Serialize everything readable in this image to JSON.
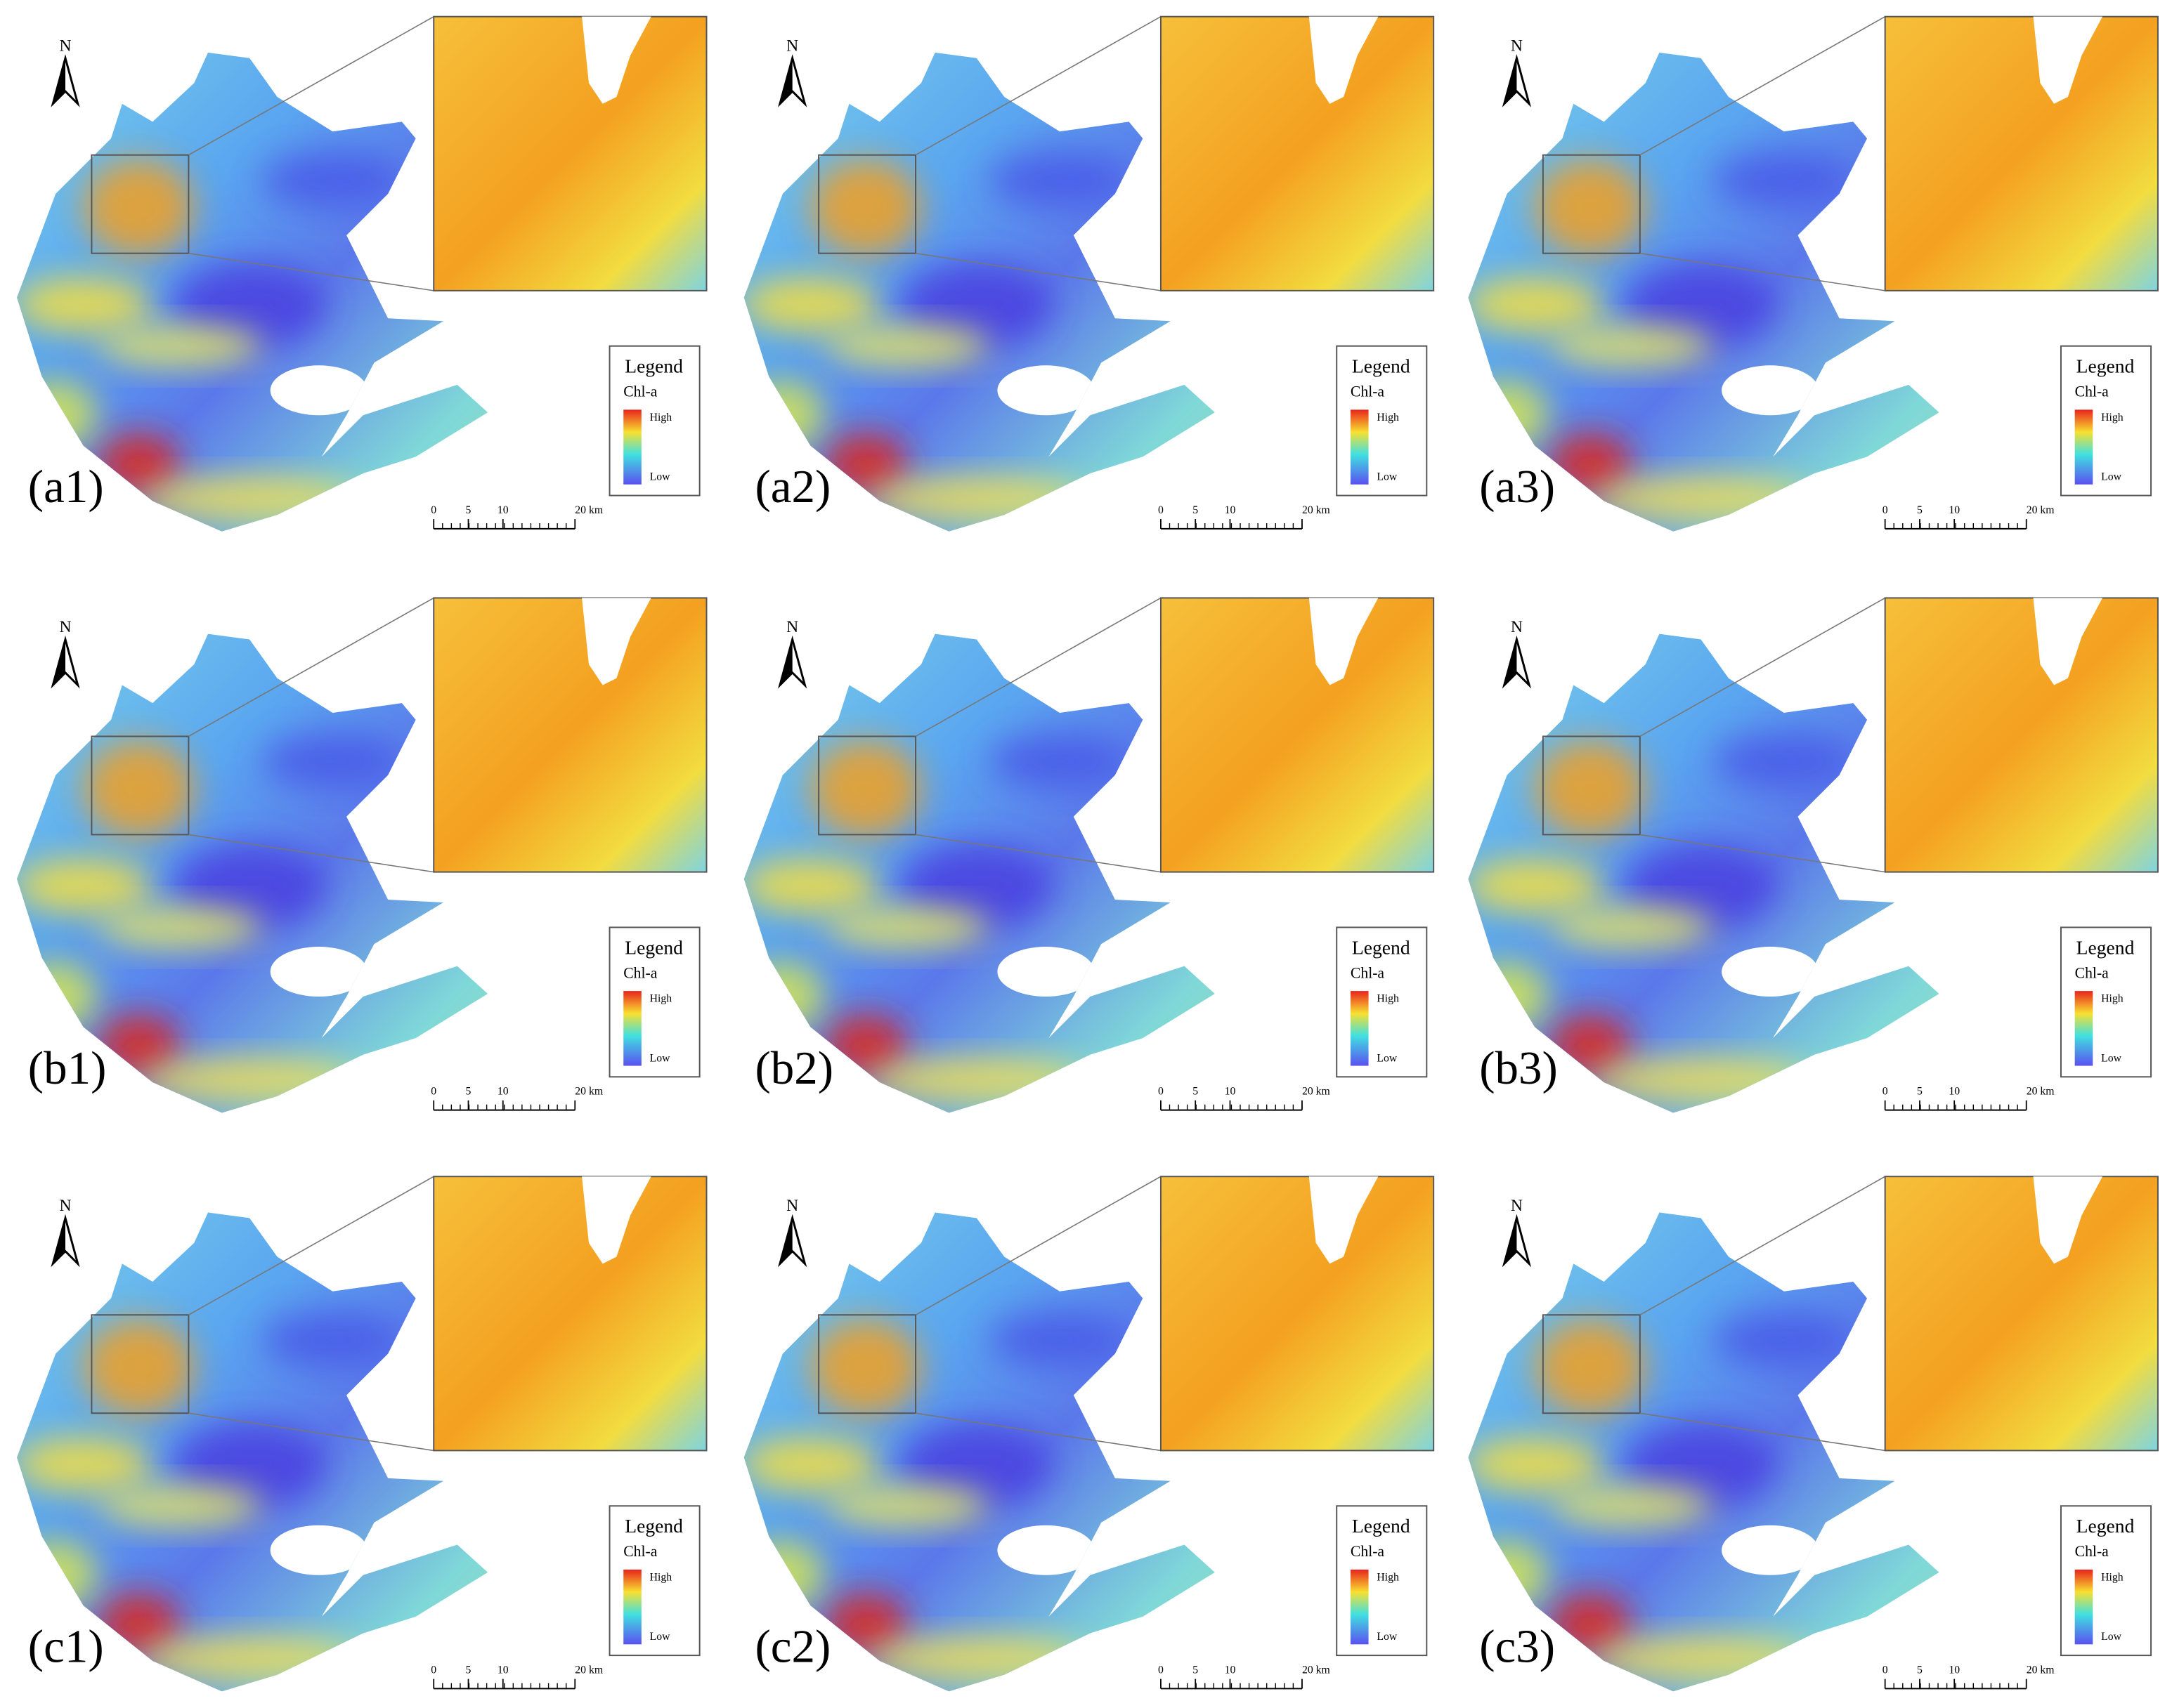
{
  "panels": [
    {
      "label": "(a1)",
      "north": "N",
      "legend": {
        "title": "Legend",
        "variable": "Chl-a",
        "high": "High",
        "low": "Low"
      },
      "scale_bar": [
        "0",
        "5",
        "10",
        "20 km"
      ]
    },
    {
      "label": "(a2)",
      "north": "N",
      "legend": {
        "title": "Legend",
        "variable": "Chl-a",
        "high": "High",
        "low": "Low"
      },
      "scale_bar": [
        "0",
        "5",
        "10",
        "20 km"
      ]
    },
    {
      "label": "(a3)",
      "north": "N",
      "legend": {
        "title": "Legend",
        "variable": "Chl-a",
        "high": "High",
        "low": "Low"
      },
      "scale_bar": [
        "0",
        "5",
        "10",
        "20 km"
      ]
    },
    {
      "label": "(b1)",
      "north": "N",
      "legend": {
        "title": "Legend",
        "variable": "Chl-a",
        "high": "High",
        "low": "Low"
      },
      "scale_bar": [
        "0",
        "5",
        "10",
        "20 km"
      ]
    },
    {
      "label": "(b2)",
      "north": "N",
      "legend": {
        "title": "Legend",
        "variable": "Chl-a",
        "high": "High",
        "low": "Low"
      },
      "scale_bar": [
        "0",
        "5",
        "10",
        "20 km"
      ]
    },
    {
      "label": "(b3)",
      "north": "N",
      "legend": {
        "title": "Legend",
        "variable": "Chl-a",
        "high": "High",
        "low": "Low"
      },
      "scale_bar": [
        "0",
        "5",
        "10",
        "20 km"
      ]
    },
    {
      "label": "(c1)",
      "north": "N",
      "legend": {
        "title": "Legend",
        "variable": "Chl-a",
        "high": "High",
        "low": "Low"
      },
      "scale_bar": [
        "0",
        "5",
        "10",
        "20 km"
      ]
    },
    {
      "label": "(c2)",
      "north": "N",
      "legend": {
        "title": "Legend",
        "variable": "Chl-a",
        "high": "High",
        "low": "Low"
      },
      "scale_bar": [
        "0",
        "5",
        "10",
        "20 km"
      ]
    },
    {
      "label": "(c3)",
      "north": "N",
      "legend": {
        "title": "Legend",
        "variable": "Chl-a",
        "high": "High",
        "low": "Low"
      },
      "scale_bar": [
        "0",
        "5",
        "10",
        "20 km"
      ]
    }
  ]
}
